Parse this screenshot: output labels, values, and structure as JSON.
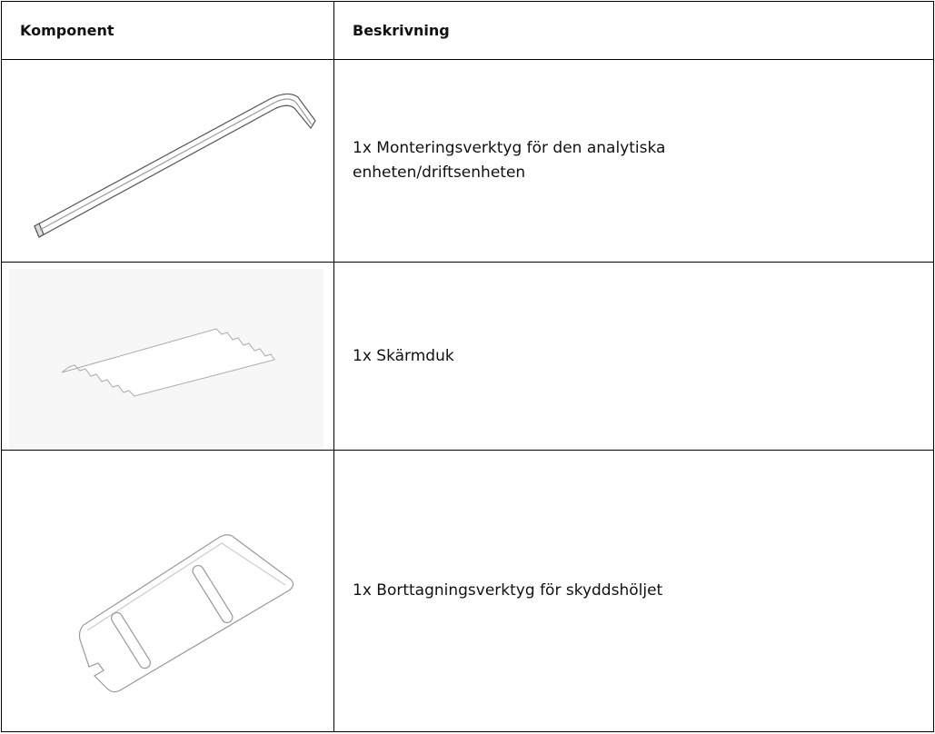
{
  "table": {
    "header": [
      "Komponent",
      "Beskrivning"
    ],
    "rows": [
      [
        "1x Monteringsverktyg för den analytiska enheten/driftsenheten"
      ],
      [
        "1x Skärmduk"
      ],
      [
        "1x Borttagningsverktyg för skyddshöljet"
      ]
    ]
  }
}
